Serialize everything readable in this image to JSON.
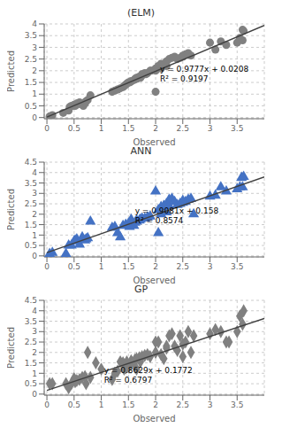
{
  "chart_data": [
    {
      "type": "scatter",
      "title": "(ELM)",
      "x_label": "Observed",
      "y_label": "Predicted",
      "xlim": [
        -0.05,
        4
      ],
      "ylim": [
        -0.05,
        4
      ],
      "xticks": [
        0,
        0.5,
        1,
        1.5,
        2,
        2.5,
        3,
        3.5
      ],
      "yticks": [
        0,
        0.5,
        1,
        1.5,
        2,
        2.5,
        3,
        3.5,
        4
      ],
      "grid": true,
      "series": [
        {
          "type": "scatter",
          "marker": "circle",
          "color": "#808080",
          "x": [
            0.05,
            0.1,
            0.3,
            0.4,
            0.42,
            0.45,
            0.48,
            0.5,
            0.52,
            0.55,
            0.55,
            0.6,
            0.65,
            0.67,
            0.7,
            0.7,
            0.72,
            0.75,
            0.8,
            1.2,
            1.25,
            1.3,
            1.35,
            1.4,
            1.42,
            1.45,
            1.47,
            1.5,
            1.52,
            1.55,
            1.55,
            1.6,
            1.62,
            1.65,
            1.65,
            1.7,
            1.72,
            1.75,
            1.75,
            1.8,
            1.82,
            1.85,
            1.9,
            1.92,
            2.0,
            2.0,
            2.0,
            2.05,
            2.05,
            2.1,
            2.1,
            2.15,
            2.2,
            2.2,
            2.25,
            2.3,
            2.35,
            2.4,
            2.45,
            2.5,
            2.5,
            2.55,
            2.6,
            2.65,
            3.0,
            3.1,
            3.2,
            3.3,
            3.5,
            3.55,
            3.6,
            3.6,
            3.62
          ],
          "values": [
            0.05,
            0.1,
            0.2,
            0.3,
            0.45,
            0.5,
            0.5,
            0.55,
            0.5,
            0.55,
            0.6,
            0.65,
            0.55,
            0.5,
            0.6,
            0.65,
            0.7,
            0.75,
            0.95,
            1.1,
            1.15,
            1.2,
            1.25,
            1.3,
            1.35,
            1.4,
            1.45,
            1.5,
            1.5,
            1.55,
            1.55,
            1.6,
            1.65,
            1.7,
            1.65,
            1.75,
            1.7,
            1.8,
            1.85,
            1.9,
            1.85,
            1.9,
            2.0,
            2.0,
            1.1,
            2.0,
            2.1,
            2.2,
            2.15,
            2.1,
            2.3,
            2.25,
            2.2,
            2.4,
            2.5,
            2.55,
            2.6,
            2.5,
            2.55,
            2.6,
            2.65,
            2.7,
            2.75,
            2.65,
            3.2,
            2.9,
            3.25,
            3.1,
            3.2,
            3.4,
            3.3,
            3.75,
            3.7
          ]
        },
        {
          "type": "line",
          "color": "#404040",
          "x": [
            0,
            4
          ],
          "values": [
            0.0208,
            3.9316
          ]
        }
      ],
      "annotations": [
        {
          "text": "y = 0.9777x + 0.0208\nR² = 0.9197",
          "x": 2.08,
          "y": 1.55
        }
      ]
    },
    {
      "type": "scatter",
      "title": "ANN",
      "x_label": "Observed",
      "y_label": "Predicted",
      "xlim": [
        -0.05,
        4
      ],
      "ylim": [
        -0.05,
        4.5
      ],
      "xticks": [
        0,
        0.5,
        1,
        1.5,
        2,
        2.5,
        3,
        3.5
      ],
      "yticks": [
        0,
        0.5,
        1,
        1.5,
        2,
        2.5,
        3,
        3.5,
        4,
        4.5
      ],
      "grid": true,
      "series": [
        {
          "type": "scatter",
          "marker": "triangle",
          "color": "#4472C4",
          "x": [
            0.05,
            0.1,
            0.35,
            0.4,
            0.45,
            0.5,
            0.52,
            0.55,
            0.6,
            0.65,
            0.7,
            0.72,
            0.75,
            0.8,
            1.2,
            1.25,
            1.3,
            1.35,
            1.4,
            1.45,
            1.5,
            1.52,
            1.55,
            1.55,
            1.6,
            1.62,
            1.65,
            1.65,
            1.7,
            1.72,
            1.75,
            1.8,
            1.85,
            1.9,
            2.0,
            2.05,
            2.05,
            2.1,
            2.1,
            2.15,
            2.2,
            2.2,
            2.25,
            2.25,
            2.3,
            2.35,
            2.4,
            2.45,
            2.5,
            2.5,
            2.55,
            2.6,
            2.65,
            2.7,
            3.0,
            3.1,
            3.2,
            3.3,
            3.5,
            3.55,
            3.58,
            3.6,
            3.62
          ],
          "values": [
            0.1,
            0.15,
            0.1,
            0.5,
            0.5,
            0.7,
            0.75,
            0.8,
            0.55,
            0.9,
            0.75,
            0.8,
            0.85,
            1.65,
            1.35,
            1.4,
            1.1,
            0.9,
            1.45,
            1.5,
            1.55,
            1.4,
            1.5,
            1.75,
            1.45,
            1.6,
            1.65,
            1.7,
            1.7,
            1.75,
            1.8,
            1.8,
            1.85,
            1.9,
            3.1,
            1.1,
            2.2,
            2.0,
            2.35,
            2.4,
            2.5,
            2.1,
            2.4,
            2.7,
            2.75,
            2.6,
            2.45,
            2.5,
            2.55,
            2.65,
            2.6,
            2.7,
            2.75,
            2.0,
            2.85,
            2.9,
            3.3,
            3.1,
            3.2,
            3.3,
            3.75,
            3.3,
            3.8
          ]
        },
        {
          "type": "line",
          "color": "#404040",
          "x": [
            0,
            4
          ],
          "values": [
            0.158,
            3.7904
          ]
        }
      ],
      "annotations": [
        {
          "text": "y = 0.9081x + 0.158\nR² = 0.8574",
          "x": 1.62,
          "y": 1.55
        }
      ]
    },
    {
      "type": "scatter",
      "title": "GP",
      "x_label": "Observed",
      "y_label": "Predicted",
      "xlim": [
        -0.05,
        4
      ],
      "ylim": [
        -0.05,
        4.5
      ],
      "xticks": [
        0,
        0.5,
        1,
        1.5,
        2,
        2.5,
        3,
        3.5
      ],
      "yticks": [
        0,
        0.5,
        1,
        1.5,
        2,
        2.5,
        3,
        3.5,
        4,
        4.5
      ],
      "grid": true,
      "series": [
        {
          "type": "scatter",
          "marker": "diamond",
          "color": "#808080",
          "x": [
            0.05,
            0.1,
            0.35,
            0.4,
            0.45,
            0.5,
            0.52,
            0.55,
            0.6,
            0.65,
            0.7,
            0.72,
            0.75,
            0.8,
            0.9,
            1.0,
            1.2,
            1.25,
            1.3,
            1.35,
            1.4,
            1.42,
            1.45,
            1.47,
            1.5,
            1.52,
            1.55,
            1.55,
            1.6,
            1.62,
            1.65,
            1.65,
            1.7,
            1.72,
            1.75,
            1.8,
            1.85,
            1.9,
            2.0,
            2.0,
            2.05,
            2.1,
            2.15,
            2.2,
            2.2,
            2.25,
            2.3,
            2.35,
            2.4,
            2.45,
            2.5,
            2.5,
            2.55,
            2.6,
            2.65,
            2.7,
            3.0,
            3.1,
            3.2,
            3.3,
            3.35,
            3.5,
            3.55,
            3.6,
            3.62
          ],
          "values": [
            0.5,
            0.5,
            0.5,
            0.3,
            0.5,
            0.75,
            0.6,
            0.65,
            0.7,
            0.8,
            0.85,
            0.5,
            2.0,
            0.8,
            1.5,
            1.2,
            0.7,
            1.0,
            1.1,
            1.55,
            1.5,
            1.2,
            1.25,
            1.55,
            1.3,
            1.4,
            1.55,
            1.6,
            1.5,
            1.65,
            1.7,
            1.2,
            1.75,
            1.55,
            1.8,
            1.85,
            1.9,
            1.8,
            2.0,
            2.5,
            2.5,
            1.9,
            1.7,
            2.2,
            2.3,
            2.8,
            2.9,
            2.3,
            2.1,
            2.8,
            2.4,
            1.8,
            2.5,
            3.0,
            2.0,
            2.8,
            2.9,
            3.1,
            3.0,
            2.5,
            2.5,
            3.0,
            3.75,
            3.35,
            4.0
          ]
        },
        {
          "type": "line",
          "color": "#404040",
          "x": [
            0,
            4
          ],
          "values": [
            0.1772,
            3.6288
          ]
        }
      ],
      "annotations": [
        {
          "text": "y = 0.8629x + 0.1772\nR² = 0.6797",
          "x": 1.05,
          "y": 0.55
        }
      ]
    }
  ]
}
